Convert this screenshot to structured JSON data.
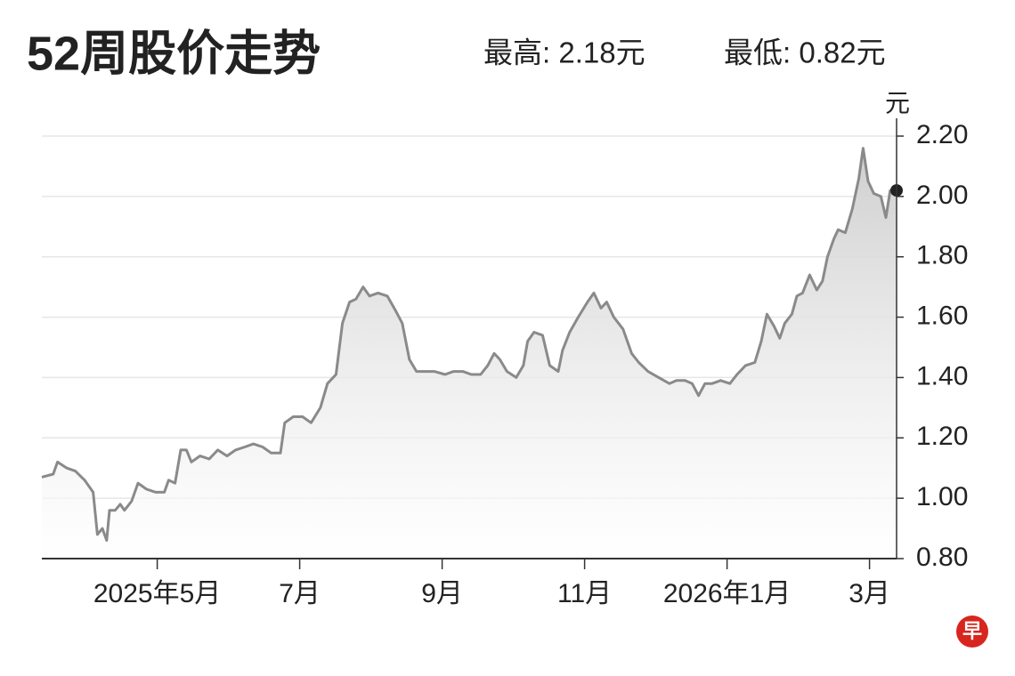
{
  "chart_data": {
    "type": "line",
    "title": "52周股价走势",
    "annotations": [
      "最高: 2.18元",
      "最低: 0.82元"
    ],
    "y_unit": "元",
    "logo": "早",
    "x": [
      3.38,
      3.54,
      3.6,
      3.73,
      3.85,
      3.98,
      4.1,
      4.16,
      4.23,
      4.29,
      4.33,
      4.41,
      4.48,
      4.54,
      4.64,
      4.73,
      4.79,
      4.85,
      4.98,
      5.1,
      5.16,
      5.25,
      5.33,
      5.41,
      5.48,
      5.6,
      5.73,
      5.85,
      5.98,
      6.1,
      6.23,
      6.35,
      6.48,
      6.6,
      6.73,
      6.79,
      6.91,
      7.04,
      7.16,
      7.29,
      7.39,
      7.51,
      7.6,
      7.7,
      7.79,
      7.89,
      7.98,
      8.1,
      8.23,
      8.35,
      8.44,
      8.54,
      8.64,
      8.76,
      8.89,
      9.04,
      9.16,
      9.29,
      9.41,
      9.54,
      9.64,
      9.73,
      9.81,
      9.91,
      10.04,
      10.14,
      10.2,
      10.29,
      10.41,
      10.51,
      10.63,
      10.69,
      10.79,
      10.91,
      11.04,
      11.13,
      11.23,
      11.31,
      11.41,
      11.54,
      11.66,
      11.76,
      11.89,
      12.04,
      12.19,
      12.29,
      12.41,
      12.51,
      12.6,
      12.69,
      12.79,
      12.91,
      13.04,
      13.14,
      13.26,
      13.39,
      13.48,
      13.56,
      13.66,
      13.74,
      13.81,
      13.91,
      13.98,
      14.06,
      14.16,
      14.26,
      14.34,
      14.41,
      14.5,
      14.56,
      14.66,
      14.76,
      14.85,
      14.91,
      14.98,
      15.06,
      15.16,
      15.23,
      15.29,
      15.38
    ],
    "values": [
      1.07,
      1.08,
      1.12,
      1.1,
      1.09,
      1.06,
      1.02,
      0.88,
      0.9,
      0.86,
      0.96,
      0.96,
      0.98,
      0.96,
      0.99,
      1.05,
      1.04,
      1.03,
      1.02,
      1.02,
      1.06,
      1.05,
      1.16,
      1.16,
      1.12,
      1.14,
      1.13,
      1.16,
      1.14,
      1.16,
      1.17,
      1.18,
      1.17,
      1.15,
      1.15,
      1.25,
      1.27,
      1.27,
      1.25,
      1.3,
      1.38,
      1.41,
      1.58,
      1.65,
      1.66,
      1.7,
      1.67,
      1.68,
      1.67,
      1.62,
      1.58,
      1.46,
      1.42,
      1.42,
      1.42,
      1.41,
      1.42,
      1.42,
      1.41,
      1.41,
      1.44,
      1.48,
      1.46,
      1.42,
      1.4,
      1.44,
      1.52,
      1.55,
      1.54,
      1.44,
      1.42,
      1.49,
      1.55,
      1.6,
      1.65,
      1.68,
      1.63,
      1.65,
      1.6,
      1.56,
      1.48,
      1.45,
      1.42,
      1.4,
      1.38,
      1.39,
      1.39,
      1.38,
      1.34,
      1.38,
      1.38,
      1.39,
      1.38,
      1.41,
      1.44,
      1.45,
      1.52,
      1.61,
      1.57,
      1.53,
      1.58,
      1.61,
      1.67,
      1.68,
      1.74,
      1.69,
      1.72,
      1.8,
      1.86,
      1.89,
      1.88,
      1.96,
      2.06,
      2.16,
      2.05,
      2.01,
      2.0,
      1.93,
      2.02,
      2.02
    ],
    "color": "#8a8a8a",
    "area_fill": true,
    "grid": true,
    "y_axis_side": "right",
    "xlim": [
      3.38,
      15.38
    ],
    "xticks": [
      {
        "value": 5,
        "label": "2025年5月"
      },
      {
        "value": 7,
        "label": "7月"
      },
      {
        "value": 9,
        "label": "9月"
      },
      {
        "value": 11,
        "label": "11月"
      },
      {
        "value": 13,
        "label": "2026年1月"
      },
      {
        "value": 15,
        "label": "3月"
      }
    ],
    "ylim": [
      0.8,
      2.2
    ],
    "yticks": [
      {
        "value": 0.8,
        "label": "0.80"
      },
      {
        "value": 1.0,
        "label": "1.00"
      },
      {
        "value": 1.2,
        "label": "1.20"
      },
      {
        "value": 1.4,
        "label": "1.40"
      },
      {
        "value": 1.6,
        "label": "1.60"
      },
      {
        "value": 1.8,
        "label": "1.80"
      },
      {
        "value": 2.0,
        "label": "2.00"
      },
      {
        "value": 2.2,
        "label": "2.20"
      }
    ]
  }
}
